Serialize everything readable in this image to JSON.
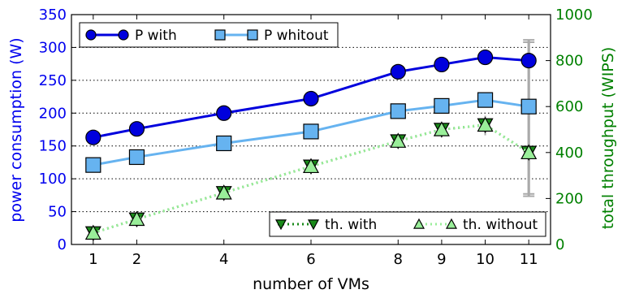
{
  "chart_data": {
    "type": "line",
    "xlabel": "number of VMs",
    "x": [
      1,
      2,
      4,
      6,
      8,
      9,
      10,
      11
    ],
    "xlim": [
      0.5,
      11.5
    ],
    "ylabel_left": "power consumption (W)",
    "ylim_left": [
      0,
      350
    ],
    "yticks_left": [
      0,
      50,
      100,
      150,
      200,
      250,
      300,
      350
    ],
    "ylabel_right": "total throughput (WIPS)",
    "ylim_right": [
      0,
      1000
    ],
    "yticks_right": [
      0,
      200,
      400,
      600,
      800,
      1000
    ],
    "grid": "horizontal dotted",
    "series": [
      {
        "name": "P with",
        "axis": "left",
        "marker": "circle",
        "line": "solid",
        "values": [
          163,
          176,
          200,
          222,
          263,
          274,
          285,
          280
        ]
      },
      {
        "name": "P whitout",
        "axis": "left",
        "marker": "square",
        "line": "solid",
        "values": [
          121,
          133,
          154,
          172,
          203,
          211,
          220,
          210
        ]
      },
      {
        "name": "th. with",
        "axis": "right",
        "marker": "triangle-down",
        "line": "dotted",
        "values": [
          50,
          110,
          225,
          340,
          450,
          500,
          520,
          400
        ],
        "error_at_last": [
          220,
          890
        ]
      },
      {
        "name": "th. without",
        "axis": "right",
        "marker": "triangle-up",
        "line": "dotted",
        "values": [
          50,
          110,
          225,
          340,
          450,
          500,
          520,
          400
        ],
        "error_at_last": [
          210,
          880
        ]
      }
    ],
    "legends": [
      {
        "position": "top-left",
        "entries": [
          "P with",
          "P whitout"
        ]
      },
      {
        "position": "bottom-right",
        "entries": [
          "th. with",
          "th. without"
        ]
      }
    ],
    "colors": {
      "p_with": "#0000dd",
      "p_without": "#66b3f0",
      "th_with": "#1a8a1a",
      "th_without": "#99ee99",
      "left_axis": "#0000ee",
      "right_axis": "#008000",
      "error_bar": "#aaaaaa"
    }
  }
}
